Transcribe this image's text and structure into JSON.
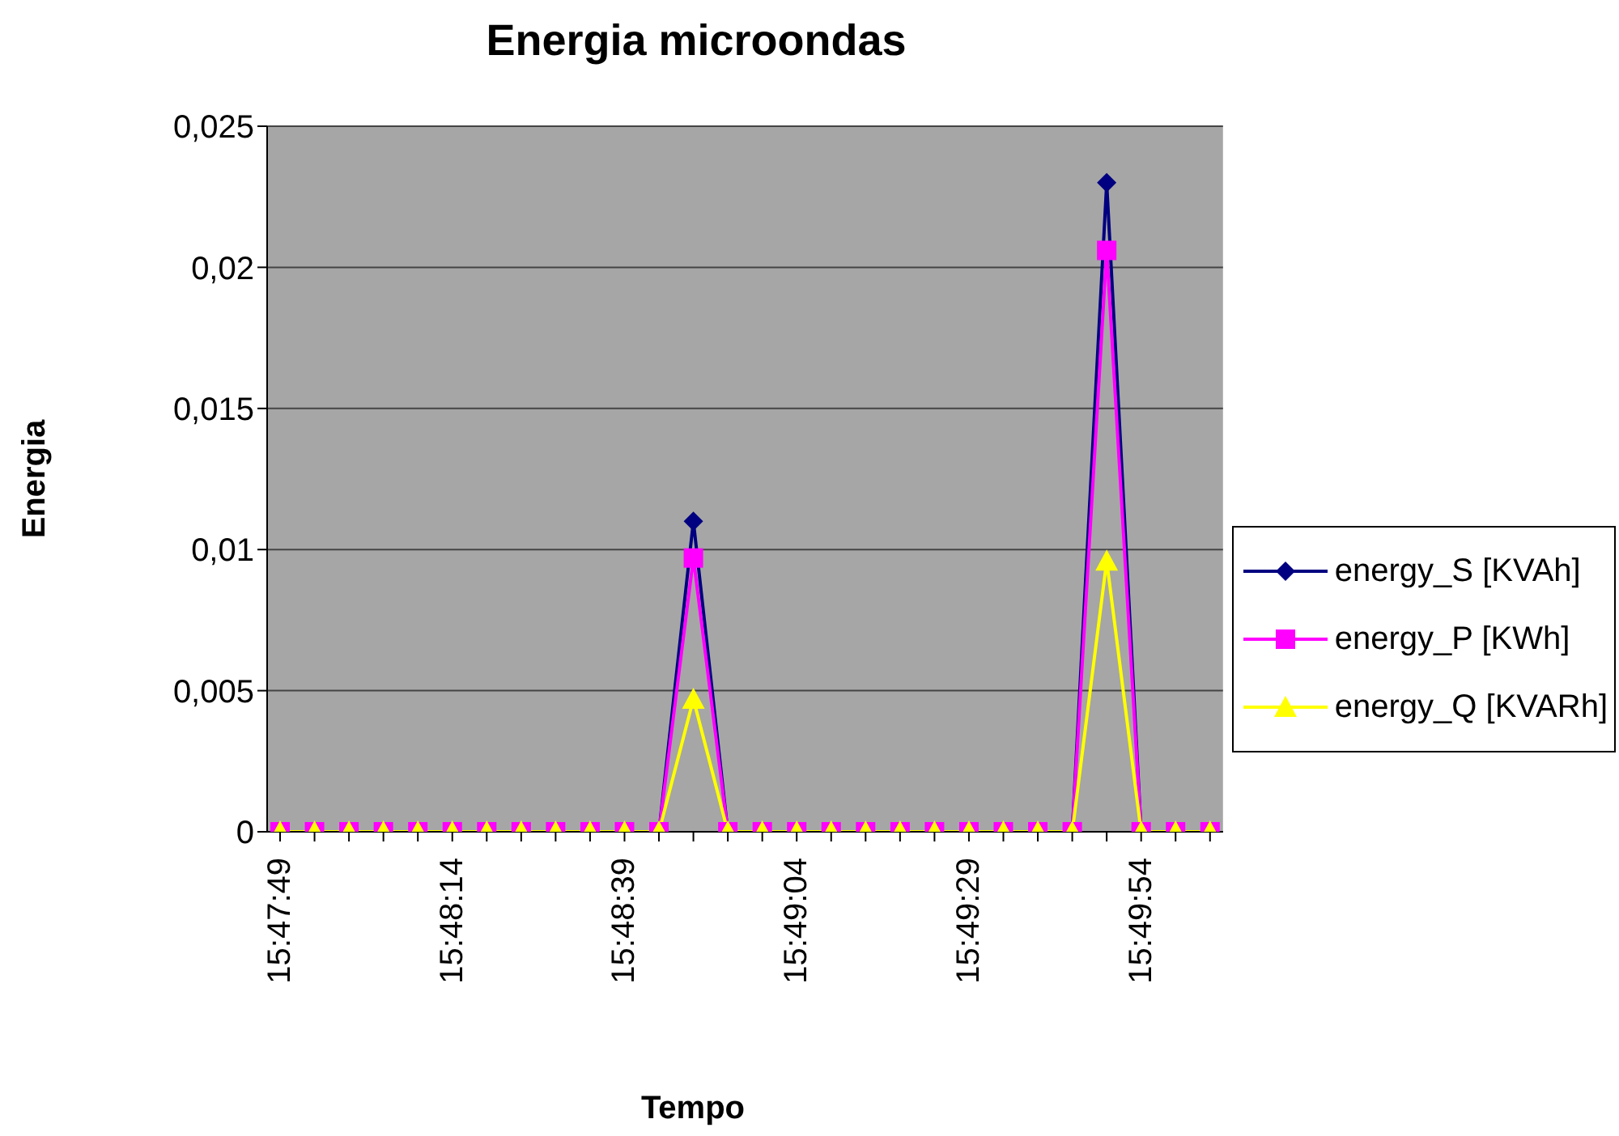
{
  "chart_data": {
    "type": "line",
    "title": "Energia microondas",
    "xlabel": "Tempo",
    "ylabel": "Energia",
    "categories": [
      "15:47:49",
      null,
      null,
      null,
      null,
      "15:48:14",
      null,
      null,
      null,
      null,
      "15:48:39",
      null,
      null,
      null,
      null,
      "15:49:04",
      null,
      null,
      null,
      null,
      "15:49:29",
      null,
      null,
      null,
      null,
      "15:49:54",
      null,
      null
    ],
    "series": [
      {
        "name": "energy_S [KVAh]",
        "color": "#000080",
        "marker": "diamond",
        "values": [
          null,
          null,
          null,
          null,
          null,
          null,
          null,
          null,
          null,
          null,
          null,
          0,
          0.011,
          0,
          null,
          null,
          null,
          null,
          null,
          null,
          null,
          null,
          null,
          0,
          0.023,
          0,
          null,
          null
        ]
      },
      {
        "name": "energy_P [KWh]",
        "color": "#ff00ff",
        "marker": "square",
        "values": [
          0,
          0,
          0,
          0,
          0,
          0,
          0,
          0,
          0,
          0,
          0,
          0,
          0.0097,
          0,
          0,
          0,
          0,
          0,
          0,
          0,
          0,
          0,
          0,
          0,
          0.0206,
          0,
          0,
          0
        ]
      },
      {
        "name": "energy_Q [KVARh]",
        "color": "#ffff00",
        "marker": "triangle",
        "values": [
          0,
          0,
          0,
          0,
          0,
          0,
          0,
          0,
          0,
          0,
          0,
          0,
          0.0047,
          0,
          0,
          0,
          0,
          0,
          0,
          0,
          0,
          0,
          0,
          0,
          0.0096,
          0,
          0,
          0
        ]
      }
    ],
    "ylim": [
      0,
      0.025
    ],
    "yticks": [
      0,
      {
        "value": 0.005,
        "label": "0,005"
      },
      {
        "value": 0.01,
        "label": "0,01"
      },
      {
        "value": 0.015,
        "label": "0,015"
      },
      {
        "value": 0.02,
        "label": "0,02"
      },
      {
        "value": 0.025,
        "label": "0,025"
      }
    ],
    "grid": "y",
    "legend": "right"
  }
}
